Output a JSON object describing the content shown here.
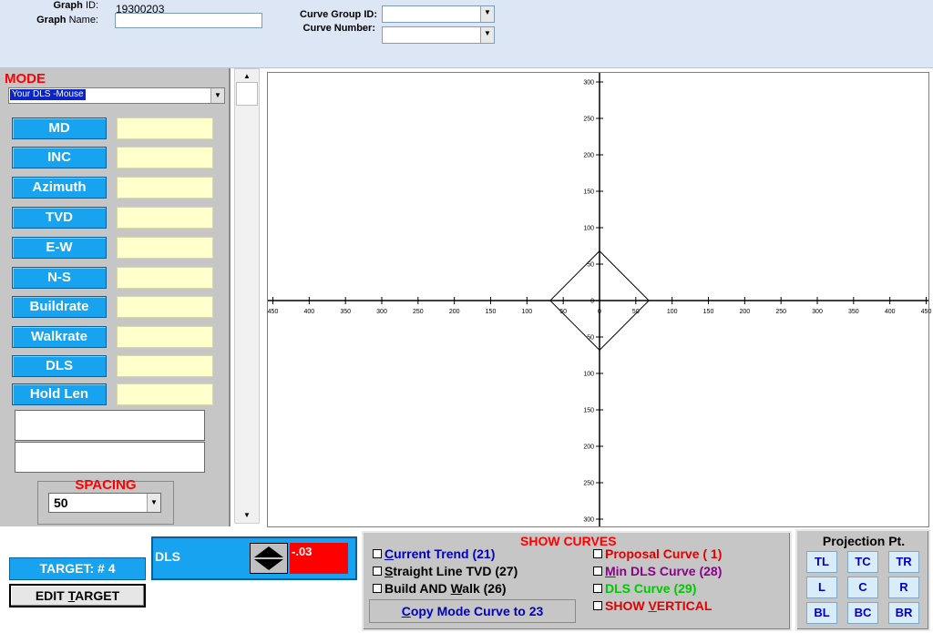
{
  "header": {
    "graph_id_label": "Graph",
    "graph_id_label_suffix": "ID:",
    "graph_id_value": "19300203",
    "graph_name_label": "Graph",
    "graph_name_label_suffix": "Name:",
    "graph_name_value": "",
    "curve_group_label": "Curve Group ID:",
    "curve_number_label": "Curve Number:",
    "curve_group_value": "",
    "curve_number_value": ""
  },
  "mode": {
    "title": "MODE",
    "selected": "Your DLS -Mouse",
    "params": [
      {
        "label": "MD",
        "value": ""
      },
      {
        "label": "INC",
        "value": ""
      },
      {
        "label": "Azimuth",
        "value": ""
      },
      {
        "label": "TVD",
        "value": ""
      },
      {
        "label": "E-W",
        "value": ""
      },
      {
        "label": "N-S",
        "value": ""
      },
      {
        "label": "Buildrate",
        "value": ""
      },
      {
        "label": "Walkrate",
        "value": ""
      },
      {
        "label": "DLS",
        "value": ""
      },
      {
        "label": "Hold Len",
        "value": ""
      }
    ]
  },
  "spacing": {
    "title": "SPACING",
    "value": "50"
  },
  "target": {
    "label": "TARGET: # 4",
    "edit_label_pre": "EDIT ",
    "edit_label_ul": "T",
    "edit_label_post": "ARGET"
  },
  "dls_control": {
    "label": "DLS",
    "value": "-.03"
  },
  "show_curves": {
    "title": "SHOW CURVES",
    "left": [
      {
        "ul": "C",
        "rest": "urrent Trend (21)",
        "color": "#0000c0"
      },
      {
        "ul": "S",
        "rest": "traight Line TVD (27)",
        "color": "#000000"
      },
      {
        "pre": "Build AND ",
        "ul": "W",
        "rest": "alk (26)",
        "color": "#000000"
      }
    ],
    "right": [
      {
        "pre": "Proposal Curve ( 1)",
        "color": "#e00000"
      },
      {
        "ul": "M",
        "rest": "in DLS Curve (28)",
        "color": "#8a008a"
      },
      {
        "pre": "DLS Curve (29)",
        "color": "#00c800"
      },
      {
        "pre": "SHOW ",
        "ul": "V",
        "rest": "ERTICAL",
        "color": "#e00000"
      }
    ],
    "copy_button": {
      "ul": "C",
      "rest": "opy Mode Curve to 23"
    }
  },
  "projection": {
    "title": "Projection Pt.",
    "buttons": [
      "TL",
      "TC",
      "TR",
      "L",
      "C",
      "R",
      "BL",
      "BC",
      "BR"
    ]
  },
  "icons": {
    "dropdown": "chevron-down-icon",
    "spin": "up-down-arrows-icon"
  },
  "chart_data": {
    "type": "scatter",
    "title": "",
    "x_ticks": [
      "450",
      "400",
      "350",
      "300",
      "250",
      "200",
      "150",
      "100",
      "50",
      "0",
      "50",
      "100",
      "150",
      "200",
      "250",
      "300",
      "350",
      "400",
      "450"
    ],
    "y_ticks": [
      "300",
      "250",
      "200",
      "150",
      "100",
      "50",
      "0",
      "50",
      "100",
      "150",
      "200",
      "250",
      "300"
    ],
    "xlim": [
      -450,
      450
    ],
    "ylim": [
      -300,
      300
    ],
    "polygon": [
      [
        0,
        68
      ],
      [
        68,
        0
      ],
      [
        0,
        -68
      ],
      [
        -68,
        0
      ]
    ],
    "grid": false
  }
}
